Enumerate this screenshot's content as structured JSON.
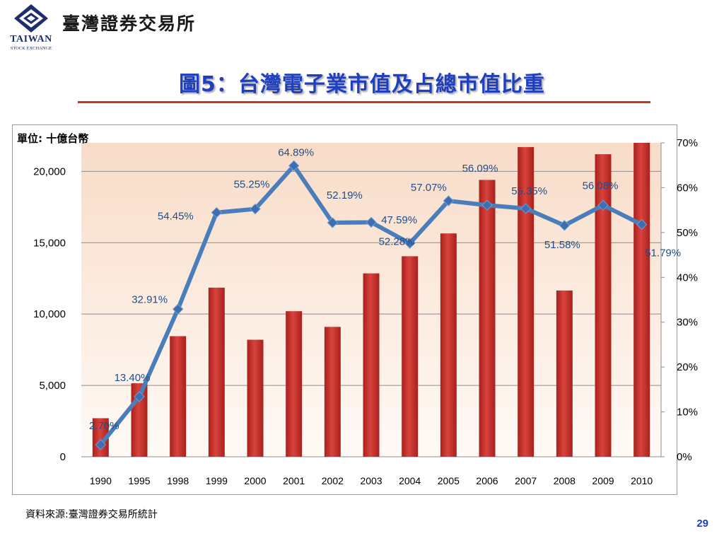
{
  "header": {
    "logo_text": "TAIWAN",
    "logo_subtext": "STOCK EXCHANGE",
    "org_name": "臺灣證券交易所"
  },
  "slide": {
    "title": "圖5：台灣電子業市值及占總市值比重",
    "source": "資料來源:臺灣證券交易所統計",
    "page_number": "29"
  },
  "colors": {
    "title": "#1f3fbf",
    "title_rule": "#c0391b",
    "bar": "#c0322e",
    "line": "#4a7ebb",
    "marker": "#3c6fb0",
    "data_label": "#1f4e8c"
  },
  "chart_data": {
    "type": "bar",
    "unit_label": "單位: 十億台幣",
    "categories": [
      "1990",
      "1995",
      "1998",
      "1999",
      "2000",
      "2001",
      "2002",
      "2003",
      "2004",
      "2005",
      "2006",
      "2007",
      "2008",
      "2009",
      "2010"
    ],
    "bar_values": [
      2700,
      5150,
      8450,
      11850,
      8200,
      10200,
      9100,
      12850,
      14050,
      15650,
      19400,
      21700,
      11650,
      21200,
      22000
    ],
    "line_values": [
      2.7,
      13.4,
      32.91,
      54.45,
      55.25,
      64.89,
      52.19,
      52.28,
      47.59,
      57.07,
      56.09,
      55.35,
      51.58,
      56.08,
      51.79
    ],
    "line_labels": [
      "2.70%",
      "13.40%",
      "32.91%",
      "54.45%",
      "55.25%",
      "64.89%",
      "52.19%",
      "52.28%",
      "47.59%",
      "57.07%",
      "56.09%",
      "55.35%",
      "51.58%",
      "56.08%",
      "51.79%"
    ],
    "y_left": {
      "ticks": [
        "0",
        "5,000",
        "10,000",
        "15,000",
        "20,000"
      ],
      "tick_values": [
        0,
        5000,
        10000,
        15000,
        20000
      ],
      "lim": [
        0,
        22000
      ]
    },
    "y_right": {
      "ticks": [
        "0%",
        "10%",
        "20%",
        "30%",
        "40%",
        "50%",
        "60%",
        "70%"
      ],
      "tick_values": [
        0,
        10,
        20,
        30,
        40,
        50,
        60,
        70
      ],
      "lim": [
        0,
        70
      ]
    },
    "grid": true
  }
}
